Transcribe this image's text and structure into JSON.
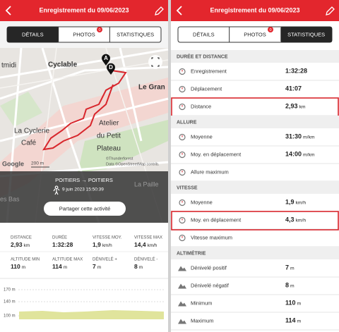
{
  "left": {
    "header": {
      "title": "Enregistrement du 09/06/2023"
    },
    "tabs": [
      {
        "label": "DÉTAILS",
        "selected": true
      },
      {
        "label": "PHOTOS",
        "badge": "0"
      },
      {
        "label": "STATISTIQUES"
      }
    ],
    "map": {
      "labels": [
        "tmidi",
        "Cyclable",
        "Le Gran",
        "La Cyclerie",
        "Café",
        "Atelier",
        "du Petit",
        "Plateau",
        "La Paille",
        "es Bas"
      ],
      "markers": [
        "A",
        "D"
      ],
      "logo": "Google",
      "scale": "200 m",
      "attribution": [
        "©Thunderforest",
        "Data ©OpenStreetMap contrib."
      ]
    },
    "route": {
      "from_to": "POITIERS → POITIERS",
      "date": "9 juin 2023 15:50:39",
      "button": "Partager cette activité"
    },
    "stats": [
      {
        "label": "DISTANCE",
        "value": "2,93",
        "unit": "km"
      },
      {
        "label": "DURÉE",
        "value": "1:32:28"
      },
      {
        "label": "VITESSE MOY.",
        "value": "1,9",
        "unit": "km/h"
      },
      {
        "label": "VITESSE MAX",
        "value": "14,4",
        "unit": "km/h"
      },
      {
        "label": "ALTITUDE MIN",
        "value": "110",
        "unit": "m"
      },
      {
        "label": "ALTITUDE MAX",
        "value": "114",
        "unit": "m"
      },
      {
        "label": "DÉNIVELÉ +",
        "value": "7",
        "unit": "m"
      },
      {
        "label": "DÉNIVELÉ -",
        "value": "8",
        "unit": "m"
      }
    ],
    "elevation": {
      "ticks": [
        "170 m",
        "140 m",
        "100 m"
      ]
    }
  },
  "right": {
    "header": {
      "title": "Enregistrement du 09/06/2023"
    },
    "tabs": [
      {
        "label": "DÉTAILS"
      },
      {
        "label": "PHOTOS",
        "badge": "0"
      },
      {
        "label": "STATISTIQUES",
        "selected": true
      }
    ],
    "sections": [
      {
        "title": "DURÉE ET DISTANCE",
        "rows": [
          {
            "label": "Enregistrement",
            "value": "1:32:28"
          },
          {
            "label": "Déplacement",
            "value": "41:07"
          },
          {
            "label": "Distance",
            "value": "2,93",
            "unit": "km",
            "highlighted": true
          }
        ]
      },
      {
        "title": "ALLURE",
        "rows": [
          {
            "label": "Moyenne",
            "value": "31:30",
            "unit": "m/km"
          },
          {
            "label": "Moy. en déplacement",
            "value": "14:00",
            "unit": "m/km"
          },
          {
            "label": "Allure maximum"
          }
        ]
      },
      {
        "title": "VITESSE",
        "rows": [
          {
            "label": "Moyenne",
            "value": "1,9",
            "unit": "km/h"
          },
          {
            "label": "Moy. en déplacement",
            "value": "4,3",
            "unit": "km/h",
            "highlighted": true
          },
          {
            "label": "Vitesse maximum"
          }
        ]
      },
      {
        "title": "ALTIMÉTRIE",
        "rows": [
          {
            "label": "Dénivelé positif",
            "value": "7",
            "unit": "m"
          },
          {
            "label": "Dénivelé négatif",
            "value": "8",
            "unit": "m"
          },
          {
            "label": "Minimum",
            "value": "110",
            "unit": "m"
          },
          {
            "label": "Maximum",
            "value": "114",
            "unit": "m"
          }
        ]
      }
    ]
  }
}
